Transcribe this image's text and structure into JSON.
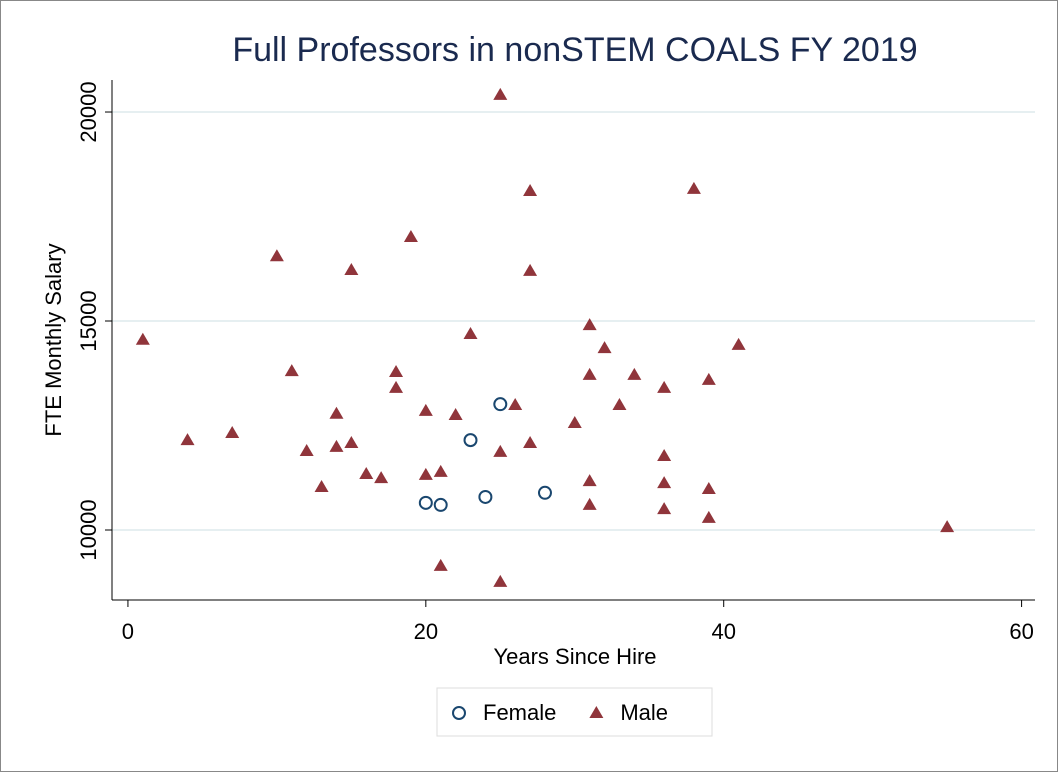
{
  "chart_data": {
    "type": "scatter",
    "title": "Full Professors in nonSTEM COALS FY 2019",
    "x_label": "Years Since Hire",
    "y_label": "FTE Monthly Salary",
    "xlim": [
      -1.07,
      60.9
    ],
    "ylim": [
      8325,
      20766
    ],
    "xticks": [
      0,
      20,
      40,
      60
    ],
    "yticks": [
      10000,
      15000,
      20000
    ],
    "grid": true,
    "legend": "bottom",
    "series": [
      {
        "name": "Female",
        "color": "#1a476f",
        "marker": "circle",
        "x": [
          20,
          21,
          23,
          24,
          25,
          28
        ],
        "values": [
          10650,
          10600,
          12150,
          10790,
          13010,
          10890
        ]
      },
      {
        "name": "Male",
        "color": "#90353b",
        "marker": "triangle",
        "x": [
          1,
          4,
          7,
          10,
          11,
          12,
          13,
          14,
          14,
          15,
          15,
          16,
          17,
          18,
          18,
          19,
          20,
          20,
          21,
          21,
          22,
          23,
          25,
          25,
          25,
          26,
          27,
          27,
          27,
          30,
          31,
          31,
          31,
          31,
          32,
          33,
          34,
          36,
          36,
          36,
          36,
          38,
          39,
          39,
          39,
          41,
          55
        ],
        "values": [
          14550,
          12150,
          12320,
          16550,
          13800,
          11890,
          11030,
          12780,
          11990,
          16220,
          12080,
          11340,
          11240,
          13780,
          13400,
          17010,
          12850,
          11320,
          11390,
          9140,
          12750,
          14690,
          20410,
          11870,
          8760,
          12990,
          18110,
          16200,
          12080,
          12560,
          14900,
          13710,
          11170,
          10600,
          14350,
          12990,
          13710,
          13400,
          11770,
          11120,
          10500,
          18160,
          13590,
          10980,
          10290,
          14430,
          10070
        ]
      }
    ]
  }
}
